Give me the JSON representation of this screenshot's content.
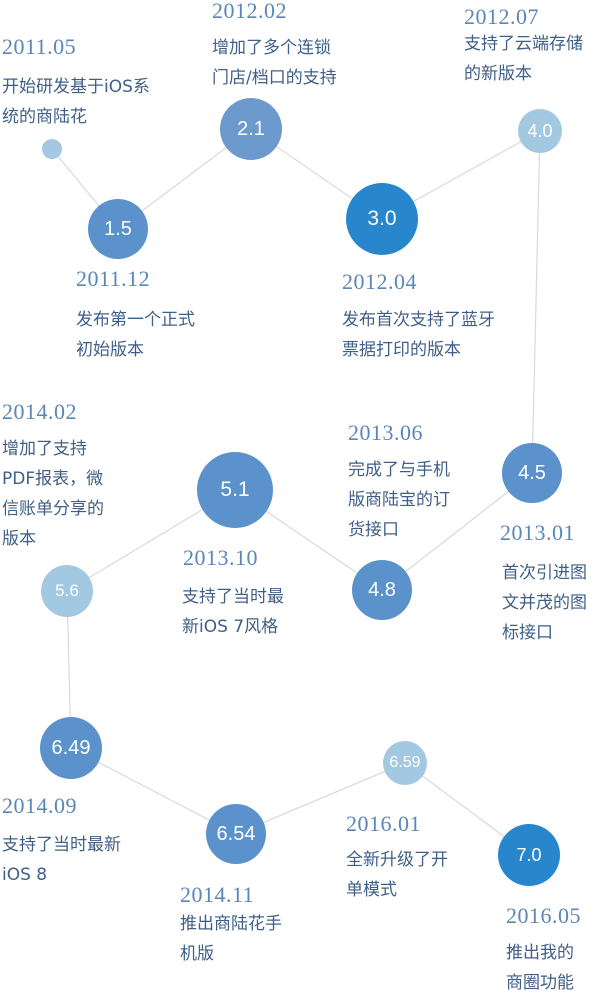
{
  "colors": {
    "connector": "#d9d9d9",
    "date_text": "#5a86b8",
    "desc_text": "#3f5f88"
  },
  "events": [
    {
      "id": "1.0",
      "label": "",
      "date": "2011.05",
      "desc": [
        "开始研发基于iOS系",
        "统的商陆花"
      ],
      "color": "#a3c8e2"
    },
    {
      "id": "1.5",
      "label": "1.5",
      "date": "2011.12",
      "desc": [
        "发布第一个正式",
        "初始版本"
      ],
      "color": "#5b92cc"
    },
    {
      "id": "2.1",
      "label": "2.1",
      "date": "2012.02",
      "desc": [
        "增加了多个连锁",
        "门店/档口的支持"
      ],
      "color": "#6d9acd"
    },
    {
      "id": "3.0",
      "label": "3.0",
      "date": "2012.04",
      "desc": [
        "发布首次支持了蓝牙",
        "票据打印的版本"
      ],
      "color": "#2887cc"
    },
    {
      "id": "4.0",
      "label": "4.0",
      "date": "2012.07",
      "desc": [
        "支持了云端存储",
        "的新版本"
      ],
      "color": "#a3c8e2"
    },
    {
      "id": "4.5",
      "label": "4.5",
      "date": "2013.01",
      "desc": [
        "首次引进图",
        "文并茂的图",
        "标接口"
      ],
      "color": "#5b92cc"
    },
    {
      "id": "4.8",
      "label": "4.8",
      "date": "2013.06",
      "desc": [
        "完成了与手机",
        "版商陆宝的订",
        "货接口"
      ],
      "color": "#5b92cc"
    },
    {
      "id": "5.1",
      "label": "5.1",
      "date": "2013.10",
      "desc": [
        "支持了当时最",
        "新iOS 7风格"
      ],
      "color": "#5b92cc"
    },
    {
      "id": "5.6",
      "label": "5.6",
      "date": "2014.02",
      "desc": [
        "增加了支持",
        "PDF报表，微",
        "信账单分享的",
        "版本"
      ],
      "color": "#a3c8e2"
    },
    {
      "id": "6.49",
      "label": "6.49",
      "date": "2014.09",
      "desc": [
        "支持了当时最新",
        "iOS 8"
      ],
      "color": "#5b92cc"
    },
    {
      "id": "6.54",
      "label": "6.54",
      "date": "2014.11",
      "desc": [
        "推出商陆花手",
        "机版"
      ],
      "color": "#5b92cc"
    },
    {
      "id": "6.59",
      "label": "6.59",
      "date": "2016.01",
      "desc": [
        "全新升级了开",
        "单模式"
      ],
      "color": "#a3c8e2"
    },
    {
      "id": "7.0",
      "label": "7.0",
      "date": "2016.05",
      "desc": [
        "推出我的",
        "商圈功能"
      ],
      "color": "#2887cc"
    }
  ]
}
